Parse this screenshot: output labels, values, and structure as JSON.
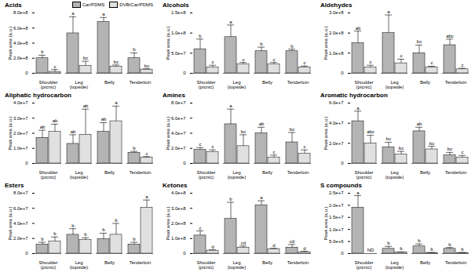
{
  "chart_data": [
    {
      "type": "bar",
      "title": "Acids",
      "y_label": "Peak area (a.u.)",
      "legend": "top-right",
      "categories": [
        "Shoulder (picnic)",
        "Leg (topside)",
        "Belly",
        "Tenderloin"
      ],
      "ylim": [
        0,
        800000000.0
      ],
      "yticks": [
        0,
        {
          "value": 200000000.0,
          "label": "2.0e+8"
        },
        {
          "value": 400000000.0,
          "label": "4.0e+8"
        },
        {
          "value": 600000000.0,
          "label": "6.0e+8"
        },
        {
          "value": 800000000.0,
          "label": "8.0e+8"
        }
      ],
      "series": [
        {
          "name": "Car/PDMS",
          "color": "#b4b4b4",
          "values": [
            200000000.0,
            530000000.0,
            680000000.0,
            200000000.0
          ],
          "errors": [
            40000000.0,
            220000000.0,
            60000000.0,
            70000000.0
          ],
          "letters": [
            "b",
            "a",
            "a",
            "b"
          ]
        },
        {
          "name": "DVB/Car/PDMS",
          "color": "#e0e0e0",
          "values": [
            20000000.0,
            100000000.0,
            90000000.0,
            50000000.0
          ],
          "errors": [
            30000000.0,
            60000000.0,
            20000000.0,
            10000000.0
          ],
          "letters": [
            "c",
            "bc",
            "bc",
            "bc"
          ]
        }
      ]
    },
    {
      "type": "bar",
      "title": "Alcohols",
      "y_label": "Peak area (a.u.)",
      "categories": [
        "Shoulder (picnic)",
        "Leg (topside)",
        "Belly",
        "Tenderloin"
      ],
      "ylim": [
        0,
        150000000.0
      ],
      "yticks": [
        0,
        {
          "value": 50000000.0,
          "label": "5.0e+7"
        },
        {
          "value": 100000000.0,
          "label": "1.0e+8"
        },
        {
          "value": 150000000.0,
          "label": "1.5e+8"
        }
      ],
      "series": [
        {
          "name": "Car/PDMS",
          "color": "#b4b4b4",
          "values": [
            60000000.0,
            90000000.0,
            55000000.0,
            55000000.0
          ],
          "errors": [
            25000000.0,
            30000000.0,
            10000000.0,
            5000000.0
          ],
          "letters": [
            "b",
            "a",
            "b",
            "b"
          ]
        },
        {
          "name": "DVB/Car/PDMS",
          "color": "#e0e0e0",
          "values": [
            15000000.0,
            22000000.0,
            22000000.0,
            15000000.0
          ],
          "errors": [
            5000000.0,
            5000000.0,
            5000000.0,
            3000000.0
          ],
          "letters": [
            "c",
            "c",
            "c",
            "c"
          ]
        }
      ]
    },
    {
      "type": "bar",
      "title": "Aldehydes",
      "y_label": "Peak area (a.u.)",
      "categories": [
        "Shoulder (picnic)",
        "Leg (topside)",
        "Belly",
        "Tenderloin"
      ],
      "ylim": [
        0,
        300000000.0
      ],
      "yticks": [
        0,
        {
          "value": 100000000.0,
          "label": "1.0e+8"
        },
        {
          "value": 200000000.0,
          "label": "2.0e+8"
        },
        {
          "value": 300000000.0,
          "label": "3.0e+8"
        }
      ],
      "series": [
        {
          "name": "Car/PDMS",
          "color": "#b4b4b4",
          "values": [
            150000000.0,
            200000000.0,
            100000000.0,
            140000000.0
          ],
          "errors": [
            60000000.0,
            90000000.0,
            40000000.0,
            30000000.0
          ],
          "letters": [
            "ab",
            "a",
            "bc",
            "abc"
          ]
        },
        {
          "name": "DVB/Car/PDMS",
          "color": "#e0e0e0",
          "values": [
            30000000.0,
            50000000.0,
            30000000.0,
            20000000.0
          ],
          "errors": [
            10000000.0,
            20000000.0,
            5000000.0,
            5000000.0
          ],
          "letters": [
            "c",
            "c",
            "c",
            "c"
          ]
        }
      ]
    },
    {
      "type": "bar",
      "title": "Aliphatic hydrocarbon",
      "y_label": "Peak area (a.u.)",
      "categories": [
        "Shoulder (picnic)",
        "Leg (topside)",
        "Belly",
        "Tenderloin"
      ],
      "ylim": [
        0,
        40000000.0
      ],
      "yticks": [
        0,
        {
          "value": 10000000.0,
          "label": "1.0e+7"
        },
        {
          "value": 20000000.0,
          "label": "2.0e+7"
        },
        {
          "value": 30000000.0,
          "label": "3.0e+7"
        },
        {
          "value": 40000000.0,
          "label": "4.0e+7"
        }
      ],
      "series": [
        {
          "name": "Car/PDMS",
          "color": "#b4b4b4",
          "values": [
            17000000.0,
            13000000.0,
            21000000.0,
            7000000.0
          ],
          "errors": [
            5000000.0,
            6000000.0,
            6000000.0,
            1000000.0
          ],
          "letters": [
            "ab",
            "ab",
            "ab",
            "b"
          ]
        },
        {
          "name": "DVB/Car/PDMS",
          "color": "#e0e0e0",
          "values": [
            21000000.0,
            19000000.0,
            28000000.0,
            4000000.0
          ],
          "errors": [
            5000000.0,
            17000000.0,
            10000000.0,
            500000.0
          ],
          "letters": [
            "ab",
            "ab",
            "a",
            "c"
          ]
        }
      ]
    },
    {
      "type": "bar",
      "title": "Amines",
      "y_label": "Peak area (a.u.)",
      "categories": [
        "Shoulder (picnic)",
        "Leg (topside)",
        "Belly",
        "Tenderloin"
      ],
      "ylim": [
        0,
        80000000.0
      ],
      "yticks": [
        0,
        {
          "value": 20000000.0,
          "label": "2.0e+7"
        },
        {
          "value": 40000000.0,
          "label": "4.0e+7"
        },
        {
          "value": 60000000.0,
          "label": "6.0e+7"
        },
        {
          "value": 80000000.0,
          "label": "8.0e+7"
        }
      ],
      "series": [
        {
          "name": "Car/PDMS",
          "color": "#b4b4b4",
          "values": [
            18000000.0,
            52000000.0,
            40000000.0,
            28000000.0
          ],
          "errors": [
            3000000.0,
            20000000.0,
            8000000.0,
            13000000.0
          ],
          "letters": [
            "c",
            "a",
            "ab",
            "bc"
          ]
        },
        {
          "name": "DVB/Car/PDMS",
          "color": "#e0e0e0",
          "values": [
            15000000.0,
            23000000.0,
            8000000.0,
            13000000.0
          ],
          "errors": [
            3000000.0,
            15000000.0,
            3000000.0,
            5000000.0
          ],
          "letters": [
            "c",
            "bc",
            "c",
            "c"
          ]
        }
      ]
    },
    {
      "type": "bar",
      "title": "Aromatic hydrocarbon",
      "y_label": "Peak area (a.u.)",
      "categories": [
        "Shoulder (picnic)",
        "Leg (topside)",
        "Belly",
        "Tenderloin"
      ],
      "ylim": [
        0,
        60000000.0
      ],
      "yticks": [
        0,
        {
          "value": 20000000.0,
          "label": "2.0e+7"
        },
        {
          "value": 40000000.0,
          "label": "4.0e+7"
        },
        {
          "value": 60000000.0,
          "label": "6.0e+7"
        }
      ],
      "series": [
        {
          "name": "Car/PDMS",
          "color": "#b4b4b4",
          "values": [
            42000000.0,
            16000000.0,
            32000000.0,
            8000000.0
          ],
          "errors": [
            10000000.0,
            5000000.0,
            4000000.0,
            3000000.0
          ],
          "letters": [
            "a",
            "bc",
            "ab",
            "bc"
          ]
        },
        {
          "name": "DVB/Car/PDMS",
          "color": "#e0e0e0",
          "values": [
            20000000.0,
            9000000.0,
            14000000.0,
            6000000.0
          ],
          "errors": [
            8000000.0,
            3000000.0,
            3000000.0,
            2000000.0
          ],
          "letters": [
            "abc",
            "bc",
            "bc",
            "c"
          ]
        }
      ]
    },
    {
      "type": "bar",
      "title": "Esters",
      "y_label": "Peak area (a.u.)",
      "categories": [
        "Shoulder (picnic)",
        "Leg (topside)",
        "Belly",
        "Tenderloin"
      ],
      "ylim": [
        0,
        80000000.0
      ],
      "yticks": [
        0,
        {
          "value": 20000000.0,
          "label": "2.0e+7"
        },
        {
          "value": 40000000.0,
          "label": "4.0e+7"
        },
        {
          "value": 60000000.0,
          "label": "6.0e+7"
        },
        {
          "value": 80000000.0,
          "label": "8.0e+7"
        }
      ],
      "series": [
        {
          "name": "Car/PDMS",
          "color": "#b4b4b4",
          "values": [
            12000000.0,
            25000000.0,
            19000000.0,
            12000000.0
          ],
          "errors": [
            3000000.0,
            8000000.0,
            8000000.0,
            3000000.0
          ],
          "letters": [
            "b",
            "b",
            "b",
            "b"
          ]
        },
        {
          "name": "DVB/Car/PDMS",
          "color": "#e0e0e0",
          "values": [
            16000000.0,
            18000000.0,
            25000000.0,
            61000000.0
          ],
          "errors": [
            6000000.0,
            3000000.0,
            15000000.0,
            10000000.0
          ],
          "letters": [
            "b",
            "b",
            "b",
            "a"
          ]
        }
      ]
    },
    {
      "type": "bar",
      "title": "Ketones",
      "y_label": "Peak area (a.u.)",
      "categories": [
        "Shoulder (picnic)",
        "Leg (topside)",
        "Belly",
        "Tenderloin"
      ],
      "ylim": [
        0,
        400000000.0
      ],
      "yticks": [
        0,
        {
          "value": 100000000.0,
          "label": "1.0e+8"
        },
        {
          "value": 200000000.0,
          "label": "2.0e+8"
        },
        {
          "value": 300000000.0,
          "label": "3.0e+8"
        },
        {
          "value": 400000000.0,
          "label": "4.0e+8"
        }
      ],
      "series": [
        {
          "name": "Car/PDMS",
          "color": "#b4b4b4",
          "values": [
            120000000.0,
            230000000.0,
            320000000.0,
            40000000.0
          ],
          "errors": [
            30000000.0,
            110000000.0,
            30000000.0,
            20000000.0
          ],
          "letters": [
            "c",
            "b",
            "a",
            "cd"
          ]
        },
        {
          "name": "DVB/Car/PDMS",
          "color": "#e0e0e0",
          "values": [
            20000000.0,
            40000000.0,
            30000000.0,
            10000000.0
          ],
          "errors": [
            5000000.0,
            10000000.0,
            5000000.0,
            5000000.0
          ],
          "letters": [
            "d",
            "cd",
            "d",
            "d"
          ]
        }
      ]
    },
    {
      "type": "bar",
      "title": "S compounds",
      "y_label": "Peak area (a.u.)",
      "categories": [
        "Shoulder (picnic)",
        "Leg (topside)",
        "Belly",
        "Tenderloin"
      ],
      "ylim": [
        0,
        25000000.0
      ],
      "yticks": [
        0,
        {
          "value": 5000000.0,
          "label": "5.0e+6"
        },
        {
          "value": 10000000.0,
          "label": "1.0e+7"
        },
        {
          "value": 15000000.0,
          "label": "1.5e+7"
        },
        {
          "value": 20000000.0,
          "label": "2.0e+7"
        },
        {
          "value": 25000000.0,
          "label": "2.5e+7"
        }
      ],
      "series": [
        {
          "name": "Car/PDMS",
          "color": "#b4b4b4",
          "values": [
            19000000.0,
            2000000.0,
            3000000.0,
            2000000.0
          ],
          "errors": [
            5000000.0,
            1000000.0,
            1000000.0,
            500000.0
          ],
          "letters": [
            "a",
            "b",
            "b",
            "b"
          ]
        },
        {
          "name": "DVB/Car/PDMS",
          "color": "#e0e0e0",
          "values": [
            null,
            500000.0,
            300000.0,
            300000.0
          ],
          "errors": [
            null,
            200000.0,
            100000.0,
            100000.0
          ],
          "letters": [
            "ND",
            "b",
            "b",
            "b"
          ]
        }
      ]
    }
  ]
}
